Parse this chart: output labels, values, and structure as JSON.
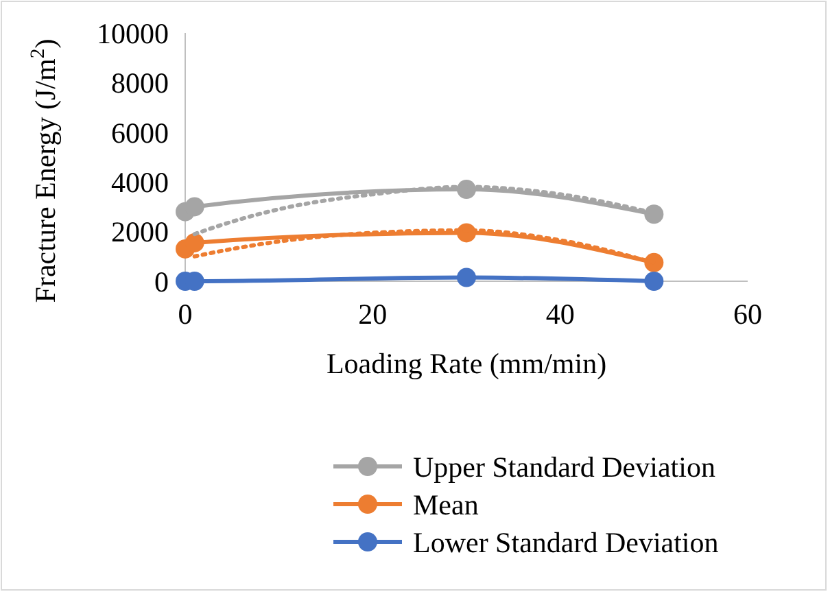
{
  "chart_data": {
    "type": "line",
    "xlabel": "Loading Rate (mm/min)",
    "ylabel": "Fracture Energy (J/m$^{2}$)",
    "xlim": [
      0,
      60
    ],
    "xticks": [
      0,
      20,
      40,
      60
    ],
    "ylim": [
      0,
      10000
    ],
    "yticks": [
      0,
      2000,
      4000,
      6000,
      8000,
      10000
    ],
    "grid": false,
    "legend": "bottom",
    "marker": "circle",
    "line_style": "solid",
    "x": [
      0,
      1,
      30,
      50
    ],
    "series": [
      {
        "name": "Upper Standard Deviation",
        "color": "#a5a5a5",
        "values": [
          2800,
          3000,
          3700,
          2700
        ]
      },
      {
        "name": "Mean",
        "color": "#ed7d31",
        "values": [
          1300,
          1550,
          1950,
          750
        ]
      },
      {
        "name": "Lower Standard Deviation",
        "color": "#4472c4",
        "values": [
          0,
          0,
          150,
          0
        ]
      },
      {
        "color": "#a5a5a5",
        "line_style": "dotted",
        "marker": "none",
        "x": [
          1,
          5,
          10,
          20,
          30,
          40,
          50
        ],
        "values": [
          1900,
          2400,
          2900,
          3500,
          3800,
          3500,
          2750
        ]
      },
      {
        "color": "#ed7d31",
        "line_style": "dotted",
        "marker": "none",
        "x": [
          1,
          5,
          10,
          20,
          30,
          40,
          50
        ],
        "values": [
          1000,
          1300,
          1600,
          1950,
          2050,
          1650,
          750
        ]
      }
    ]
  }
}
